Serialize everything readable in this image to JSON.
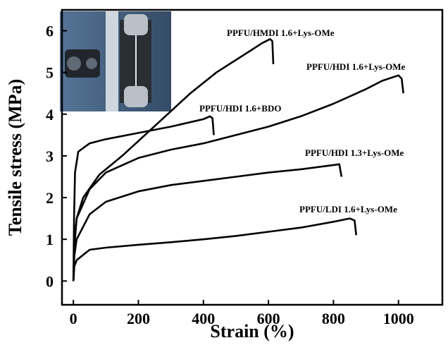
{
  "chart_data": {
    "type": "line",
    "x_label": "Strain (%)",
    "y_label": "Tensile stress (MPa)",
    "xlim": [
      -35,
      1135
    ],
    "ylim": [
      -0.57,
      6.5
    ],
    "xticks": [
      0,
      200,
      400,
      600,
      800,
      1000
    ],
    "yticks": [
      0,
      1,
      2,
      3,
      4,
      5,
      6
    ],
    "series": [
      {
        "name": "PPFU/HMDI 1.6+Lys-OMe",
        "color": "#000000",
        "x": [
          0,
          3,
          10,
          30,
          80,
          150,
          220,
          290,
          360,
          440,
          530,
          580,
          605,
          612,
          615
        ],
        "values": [
          0,
          0.9,
          1.5,
          2.0,
          2.55,
          3.0,
          3.5,
          4.0,
          4.5,
          5.0,
          5.45,
          5.7,
          5.8,
          5.75,
          5.2
        ]
      },
      {
        "name": "PPFU/HDI 1.6+Lys-OMe",
        "color": "#000000",
        "x": [
          0,
          3,
          10,
          50,
          100,
          200,
          300,
          400,
          500,
          600,
          700,
          800,
          900,
          950,
          1000,
          1010,
          1015
        ],
        "values": [
          0,
          0.8,
          1.5,
          2.2,
          2.6,
          2.95,
          3.15,
          3.3,
          3.5,
          3.7,
          3.95,
          4.25,
          4.6,
          4.8,
          4.93,
          4.85,
          4.5
        ]
      },
      {
        "name": "PPFU/HDI 1.6+BDO",
        "color": "#000000",
        "x": [
          0,
          2,
          5,
          15,
          50,
          100,
          200,
          300,
          400,
          420,
          428,
          432
        ],
        "values": [
          0,
          1.5,
          2.6,
          3.1,
          3.3,
          3.4,
          3.55,
          3.7,
          3.88,
          3.95,
          3.9,
          3.5
        ]
      },
      {
        "name": "PPFU/HDI 1.3+Lys-OMe",
        "color": "#000000",
        "x": [
          0,
          3,
          10,
          50,
          100,
          200,
          300,
          400,
          500,
          600,
          700,
          800,
          818,
          825
        ],
        "values": [
          0,
          0.6,
          1.0,
          1.6,
          1.9,
          2.15,
          2.3,
          2.4,
          2.5,
          2.6,
          2.68,
          2.78,
          2.8,
          2.5
        ]
      },
      {
        "name": "PPFU/LDI 1.6+Lys-OMe",
        "color": "#000000",
        "x": [
          0,
          3,
          10,
          50,
          100,
          200,
          300,
          400,
          500,
          600,
          700,
          800,
          850,
          865,
          870
        ],
        "values": [
          0,
          0.35,
          0.5,
          0.75,
          0.8,
          0.87,
          0.93,
          1.0,
          1.08,
          1.18,
          1.28,
          1.42,
          1.5,
          1.45,
          1.1
        ]
      }
    ]
  }
}
